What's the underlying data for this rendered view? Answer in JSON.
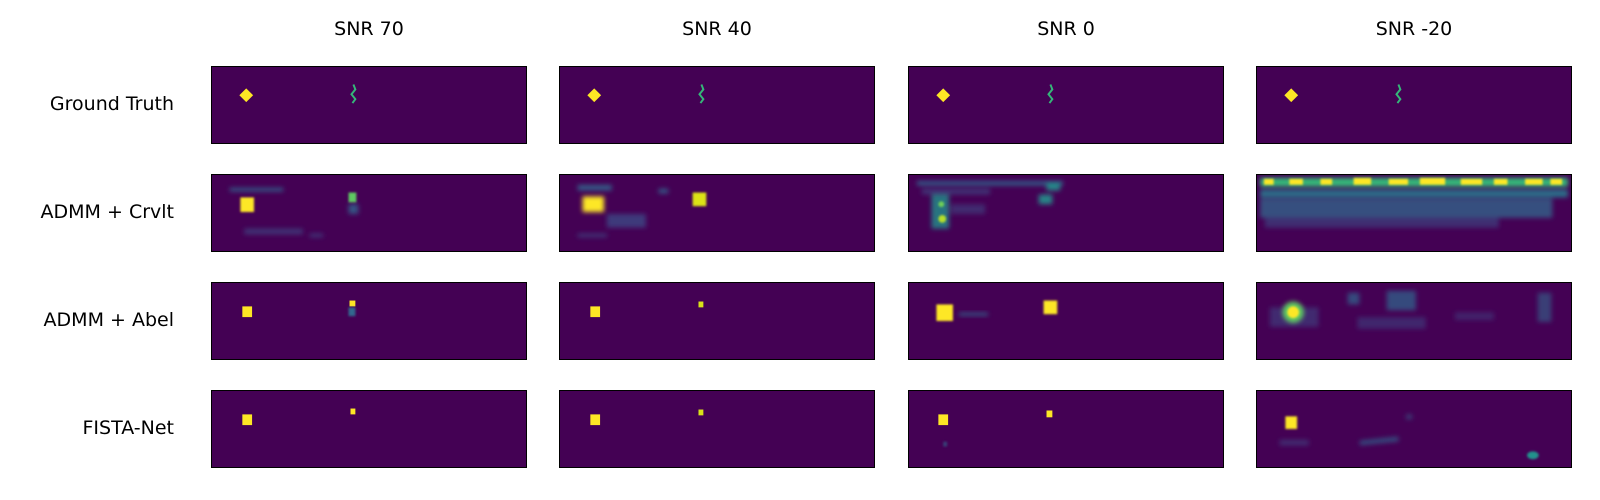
{
  "columns": [
    "SNR 70",
    "SNR 40",
    "SNR 0",
    "SNR -20"
  ],
  "rows": [
    "Ground Truth",
    "ADMM + Crvlt",
    "ADMM + Abel",
    "FISTA-Net"
  ],
  "colormap": {
    "name": "viridis",
    "background": "#440154",
    "mid": "#21918c",
    "high": "#fde725"
  }
}
